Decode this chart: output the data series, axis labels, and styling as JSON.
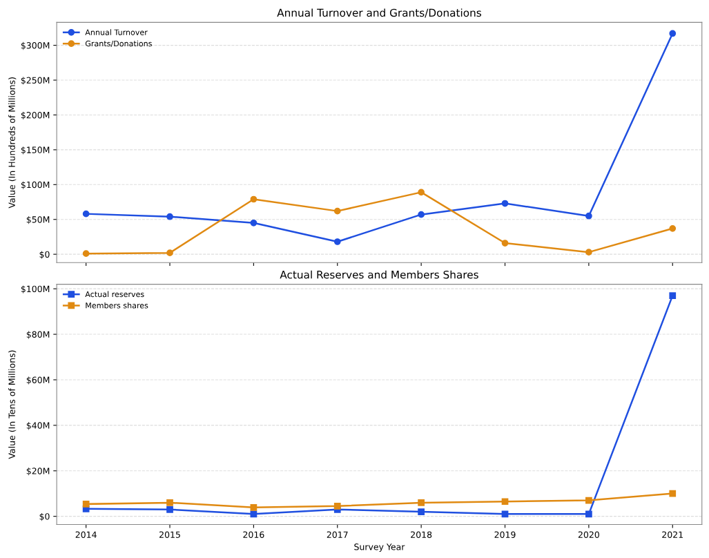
{
  "chart_data": [
    {
      "type": "line",
      "title": "Annual Turnover and Grants/Donations",
      "ylabel": "Value (In Hundreds of Millions)",
      "x": [
        2014,
        2015,
        2016,
        2017,
        2018,
        2019,
        2020,
        2021
      ],
      "series": [
        {
          "name": "Annual Turnover",
          "color": "#1f4fe0",
          "values": [
            58,
            54,
            45,
            18,
            57,
            73,
            55,
            317
          ]
        },
        {
          "name": "Grants/Donations",
          "color": "#e08a12",
          "values": [
            1,
            2,
            79,
            62,
            89,
            16,
            3,
            37
          ]
        }
      ],
      "xlim": [
        2013.65,
        2021.35
      ],
      "xticks": [
        2014,
        2015,
        2016,
        2017,
        2018,
        2019,
        2020,
        2021
      ],
      "ylim": [
        -12,
        333
      ],
      "yticks": [
        {
          "value": 0,
          "label": "$0"
        },
        {
          "value": 50,
          "label": "$50M"
        },
        {
          "value": 100,
          "label": "$100M"
        },
        {
          "value": 150,
          "label": "$150M"
        },
        {
          "value": 200,
          "label": "$200M"
        },
        {
          "value": 250,
          "label": "$250M"
        },
        {
          "value": 300,
          "label": "$300M"
        }
      ],
      "tick_labels": "y",
      "grid": "y",
      "legend": "top left",
      "marker": "circle",
      "line_style": "solid"
    },
    {
      "type": "line",
      "title": "Actual Reserves and Members Shares",
      "xlabel": "Survey Year",
      "ylabel": "Value (In Tens of Millions)",
      "x": [
        2014,
        2015,
        2016,
        2017,
        2018,
        2019,
        2020,
        2021
      ],
      "series": [
        {
          "name": "Actual reserves",
          "color": "#1f4fe0",
          "values": [
            3.3,
            3,
            1,
            3,
            2,
            1,
            1,
            97
          ]
        },
        {
          "name": "Members shares",
          "color": "#e08a12",
          "values": [
            5.4,
            6,
            3.9,
            4.5,
            6,
            6.5,
            7,
            10
          ]
        }
      ],
      "xlim": [
        2013.65,
        2021.35
      ],
      "xticks": [
        2014,
        2015,
        2016,
        2017,
        2018,
        2019,
        2020,
        2021
      ],
      "ylim": [
        -3.6,
        102
      ],
      "yticks": [
        {
          "value": 0,
          "label": "$0"
        },
        {
          "value": 20,
          "label": "$20M"
        },
        {
          "value": 40,
          "label": "$40M"
        },
        {
          "value": 60,
          "label": "$60M"
        },
        {
          "value": 80,
          "label": "$80M"
        },
        {
          "value": 100,
          "label": "$100M"
        }
      ],
      "grid": "y",
      "legend": "top left",
      "marker": "square",
      "line_style": "solid"
    }
  ]
}
